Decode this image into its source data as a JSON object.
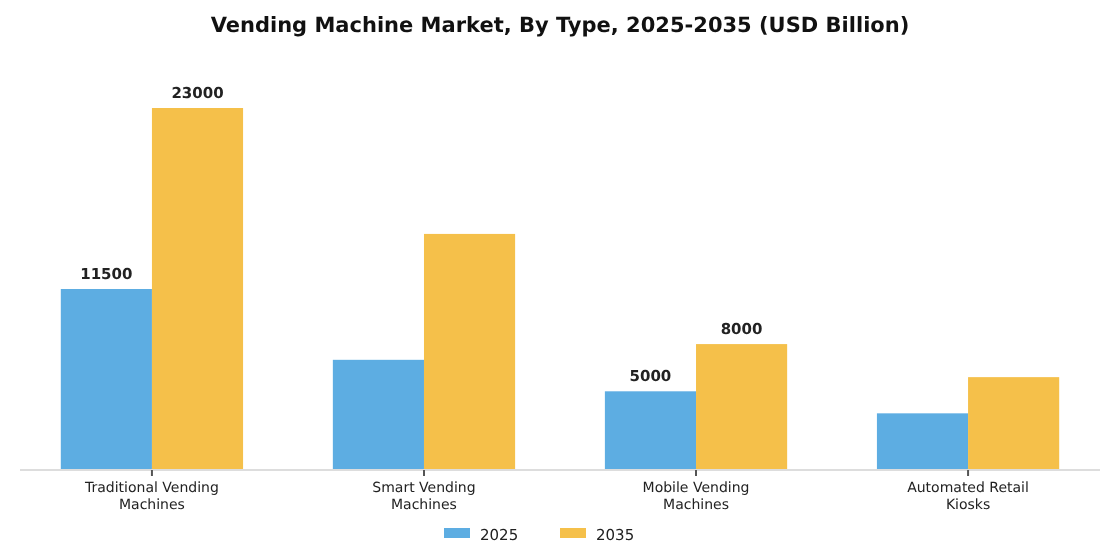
{
  "chart_data": {
    "type": "bar",
    "title": "Vending Machine Market, By Type, 2025-2035 (USD Billion)",
    "categories": [
      "Traditional Vending Machines",
      "Smart Vending Machines",
      "Mobile Vending Machines",
      "Automated Retail Kiosks"
    ],
    "series": [
      {
        "name": "2025",
        "color": "#5dade2",
        "values": [
          11500,
          7000,
          5000,
          3600
        ],
        "value_labels": [
          "11500",
          null,
          "5000",
          null
        ]
      },
      {
        "name": "2035",
        "color": "#f5c04a",
        "values": [
          23000,
          15000,
          8000,
          5900
        ],
        "value_labels": [
          "23000",
          null,
          "8000",
          null
        ]
      }
    ],
    "legend": "bottom"
  }
}
